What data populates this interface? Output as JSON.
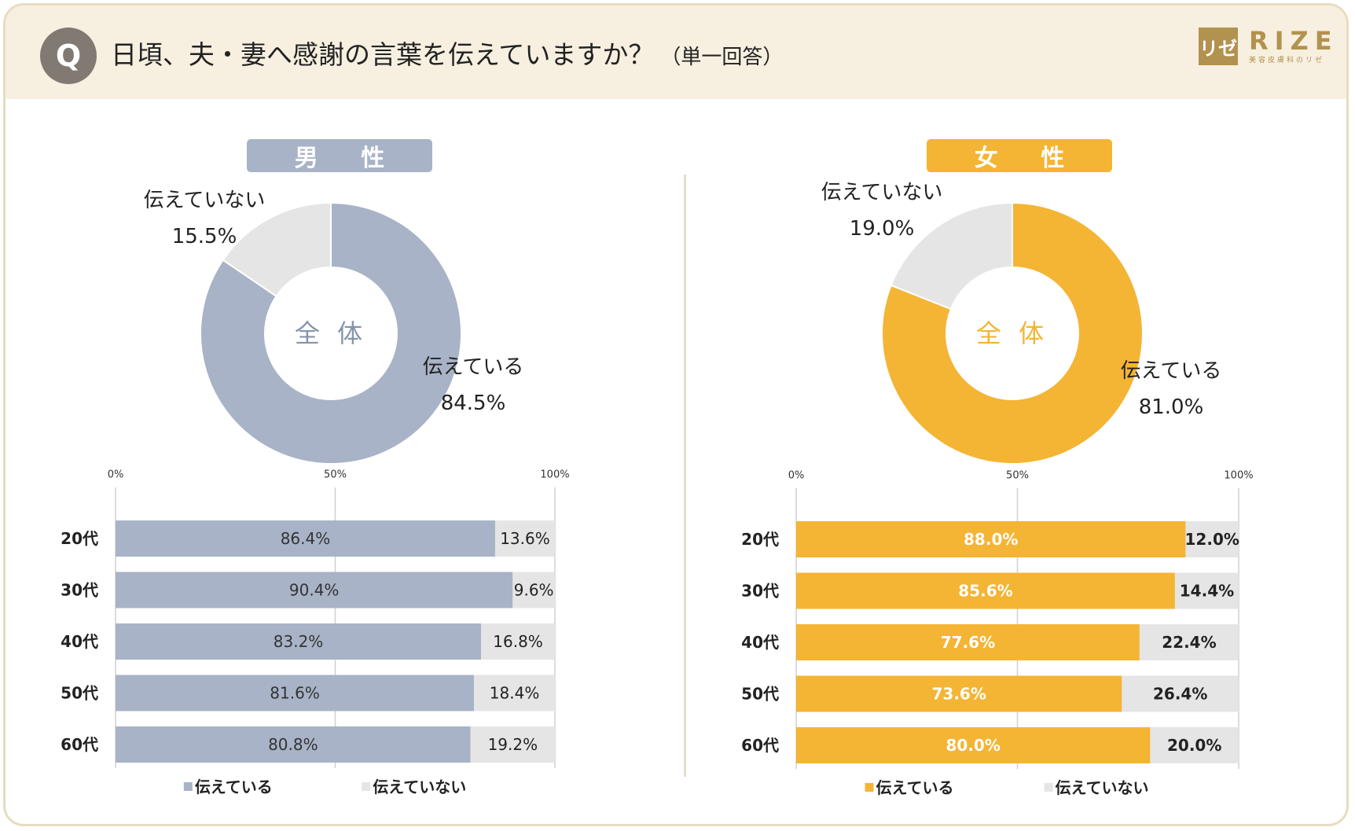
{
  "header": {
    "q_badge": "Q",
    "question": "日頃、夫・妻へ感謝の言葉を伝えていますか？",
    "question_note": "（単一回答）",
    "logo_mark": "リゼ",
    "logo_text": "RIZE",
    "logo_sub": "美容皮膚科のリゼ"
  },
  "panels": {
    "male_title": "男 性",
    "female_title": "女 性"
  },
  "colors": {
    "male": "#a8b3c7",
    "female": "#f4b434",
    "no": "#e5e5e5",
    "male_center_text": "#8594ad",
    "female_center_text": "#f4b434"
  },
  "chart_data": [
    {
      "type": "pie",
      "title": "男性 全体",
      "center_label": "全 体",
      "labels": [
        "伝えている",
        "伝えていない"
      ],
      "values": [
        84.5,
        15.5
      ],
      "value_labels": [
        "84.5%",
        "15.5%"
      ]
    },
    {
      "type": "bar",
      "title": "男性 年代別",
      "categories": [
        "20代",
        "30代",
        "40代",
        "50代",
        "60代"
      ],
      "series": [
        {
          "name": "伝えている",
          "values": [
            86.4,
            90.4,
            83.2,
            81.6,
            80.8
          ],
          "labels": [
            "86.4%",
            "90.4%",
            "83.2%",
            "81.6%",
            "80.8%"
          ]
        },
        {
          "name": "伝えていない",
          "values": [
            13.6,
            9.6,
            16.8,
            18.4,
            19.2
          ],
          "labels": [
            "13.6%",
            "9.6%",
            "16.8%",
            "18.4%",
            "19.2%"
          ]
        }
      ],
      "ticks": [
        "0%",
        "50%",
        "100%"
      ],
      "xlim": [
        0,
        100
      ],
      "stacked": true
    },
    {
      "type": "pie",
      "title": "女性 全体",
      "center_label": "全 体",
      "labels": [
        "伝えている",
        "伝えていない"
      ],
      "values": [
        81.0,
        19.0
      ],
      "value_labels": [
        "81.0%",
        "19.0%"
      ]
    },
    {
      "type": "bar",
      "title": "女性 年代別",
      "categories": [
        "20代",
        "30代",
        "40代",
        "50代",
        "60代"
      ],
      "series": [
        {
          "name": "伝えている",
          "values": [
            88.0,
            85.6,
            77.6,
            73.6,
            80.0
          ],
          "labels": [
            "88.0%",
            "85.6%",
            "77.6%",
            "73.6%",
            "80.0%"
          ]
        },
        {
          "name": "伝えていない",
          "values": [
            12.0,
            14.4,
            22.4,
            26.4,
            20.0
          ],
          "labels": [
            "12.0%",
            "14.4%",
            "22.4%",
            "26.4%",
            "20.0%"
          ]
        }
      ],
      "ticks": [
        "0%",
        "50%",
        "100%"
      ],
      "xlim": [
        0,
        100
      ],
      "stacked": true
    }
  ]
}
